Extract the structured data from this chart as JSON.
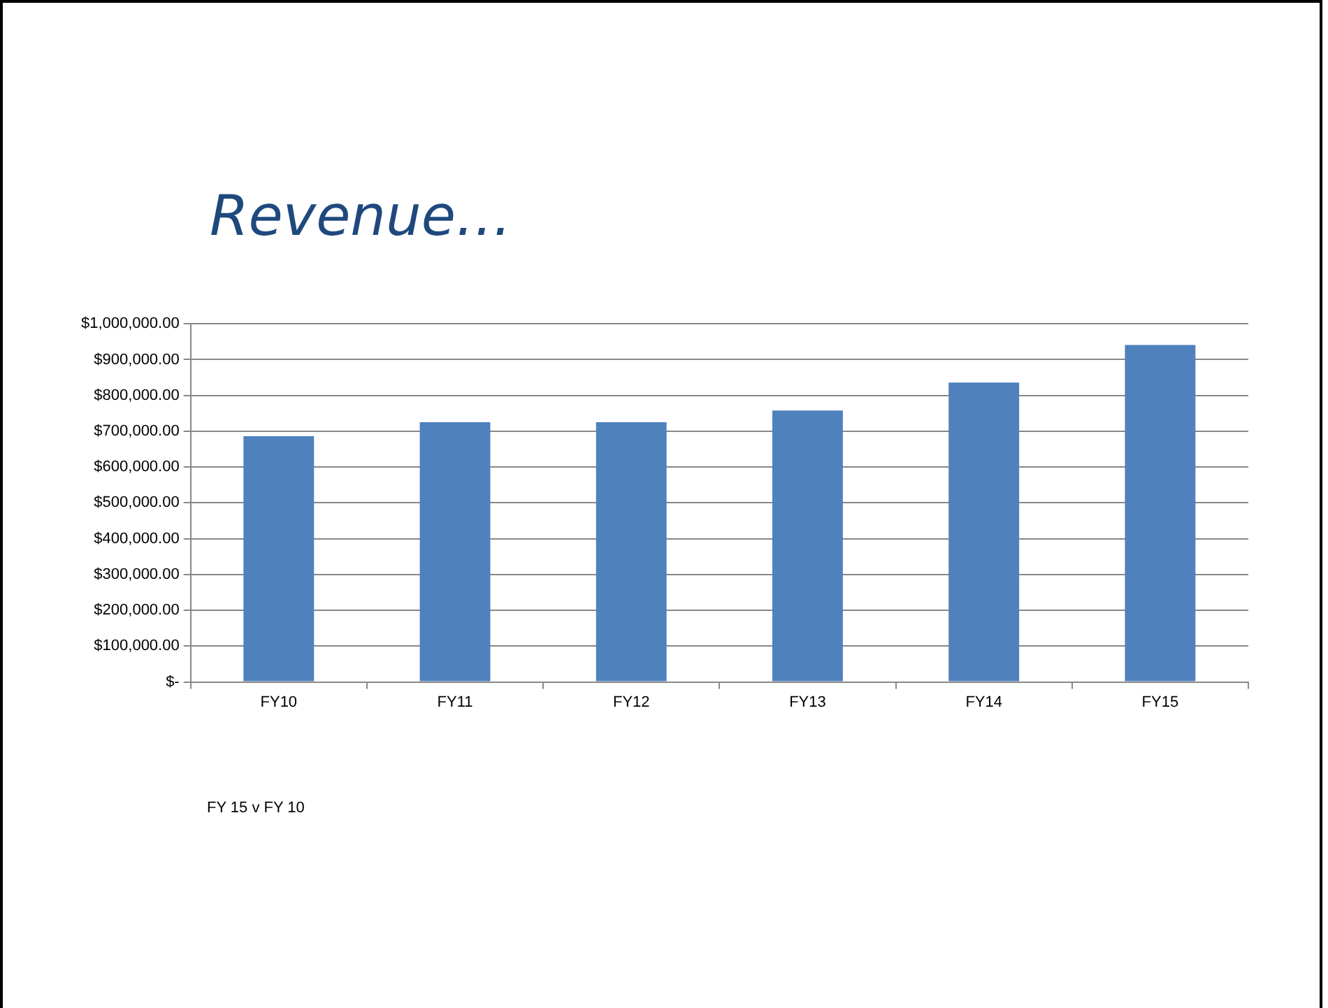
{
  "chart_data": {
    "type": "bar",
    "title": "Revenue…",
    "categories": [
      "FY10",
      "FY11",
      "FY12",
      "FY13",
      "FY14",
      "FY15"
    ],
    "values": [
      686000,
      725000,
      725000,
      758000,
      836000,
      941000
    ],
    "color": "#4f81bd",
    "ylim": [
      0,
      1000000
    ],
    "yticks": [
      {
        "value": 0,
        "label": "$-"
      },
      {
        "value": 100000,
        "label": "$100,000.00"
      },
      {
        "value": 200000,
        "label": "$200,000.00"
      },
      {
        "value": 300000,
        "label": "$300,000.00"
      },
      {
        "value": 400000,
        "label": "$400,000.00"
      },
      {
        "value": 500000,
        "label": "$500,000.00"
      },
      {
        "value": 600000,
        "label": "$600,000.00"
      },
      {
        "value": 700000,
        "label": "$700,000.00"
      },
      {
        "value": 800000,
        "label": "$800,000.00"
      },
      {
        "value": 900000,
        "label": "$900,000.00"
      },
      {
        "value": 1000000,
        "label": "$1,000,000.00"
      }
    ],
    "grid": "y",
    "legend": false,
    "annotations": [
      "FY 15 v FY 10"
    ]
  }
}
